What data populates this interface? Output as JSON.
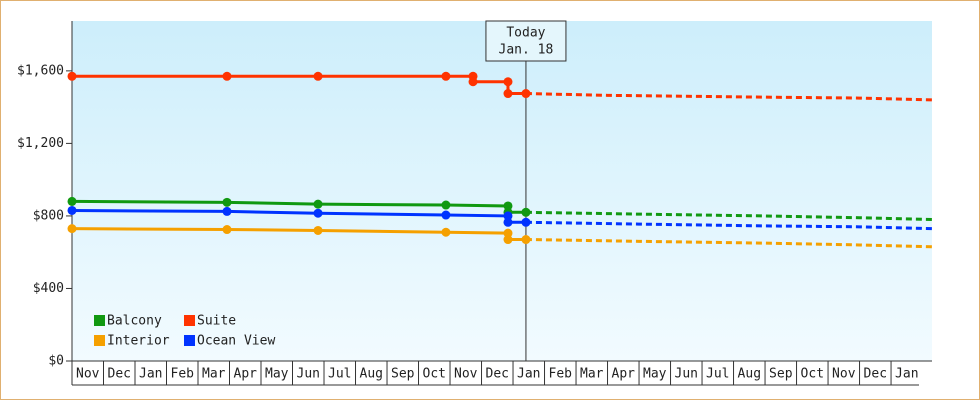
{
  "chart_data": {
    "type": "line",
    "categories": [
      "Nov",
      "Dec",
      "Jan",
      "Feb",
      "Mar",
      "Apr",
      "May",
      "Jun",
      "Jul",
      "Aug",
      "Sep",
      "Oct",
      "Nov",
      "Dec",
      "Jan",
      "Feb",
      "Mar",
      "Apr",
      "May",
      "Jun",
      "Jul",
      "Aug",
      "Sep",
      "Oct",
      "Nov",
      "Dec",
      "Jan"
    ],
    "xlim": [
      0,
      27.3
    ],
    "ylim": [
      0,
      1875
    ],
    "yticks": [
      {
        "value": 0,
        "label": "$0"
      },
      {
        "value": 400,
        "label": "$400"
      },
      {
        "value": 800,
        "label": "$800"
      },
      {
        "value": 1200,
        "label": "$1,200"
      },
      {
        "value": 1600,
        "label": "$1,600"
      }
    ],
    "annotation": {
      "lines": [
        "Today",
        "Jan. 18"
      ],
      "x": 14.41
    },
    "legend": "lower left",
    "series": [
      {
        "name": "Balcony",
        "color": "#119911",
        "x": [
          0,
          4.92,
          7.81,
          11.87,
          13.84,
          13.84,
          14.41
        ],
        "values": [
          880,
          875,
          865,
          860,
          855,
          820,
          820
        ],
        "projected_x": [
          14.41,
          18,
          22,
          25,
          27.3
        ],
        "projected_values": [
          820,
          810,
          800,
          790,
          780
        ]
      },
      {
        "name": "Suite",
        "color": "#ff3300",
        "x": [
          0,
          4.92,
          7.81,
          11.87,
          12.73,
          12.73,
          13.84,
          13.84,
          14.41
        ],
        "values": [
          1570,
          1570,
          1570,
          1570,
          1570,
          1540,
          1540,
          1475,
          1475
        ],
        "projected_x": [
          14.41,
          17,
          22,
          25,
          27.3
        ],
        "projected_values": [
          1475,
          1465,
          1455,
          1450,
          1440
        ]
      },
      {
        "name": "Interior",
        "color": "#f5a000",
        "x": [
          0,
          4.92,
          7.81,
          11.87,
          13.84,
          13.84,
          14.41
        ],
        "values": [
          730,
          725,
          720,
          710,
          705,
          670,
          670
        ],
        "projected_x": [
          14.41,
          18,
          22,
          25,
          27.3
        ],
        "projected_values": [
          670,
          660,
          650,
          640,
          630
        ]
      },
      {
        "name": "Ocean View",
        "color": "#0033ff",
        "x": [
          0,
          4.92,
          7.81,
          11.87,
          13.84,
          13.84,
          14.41
        ],
        "values": [
          830,
          825,
          815,
          805,
          800,
          765,
          765
        ],
        "projected_x": [
          14.41,
          18,
          22,
          25,
          27.3
        ],
        "projected_values": [
          765,
          755,
          745,
          740,
          730
        ]
      }
    ]
  }
}
